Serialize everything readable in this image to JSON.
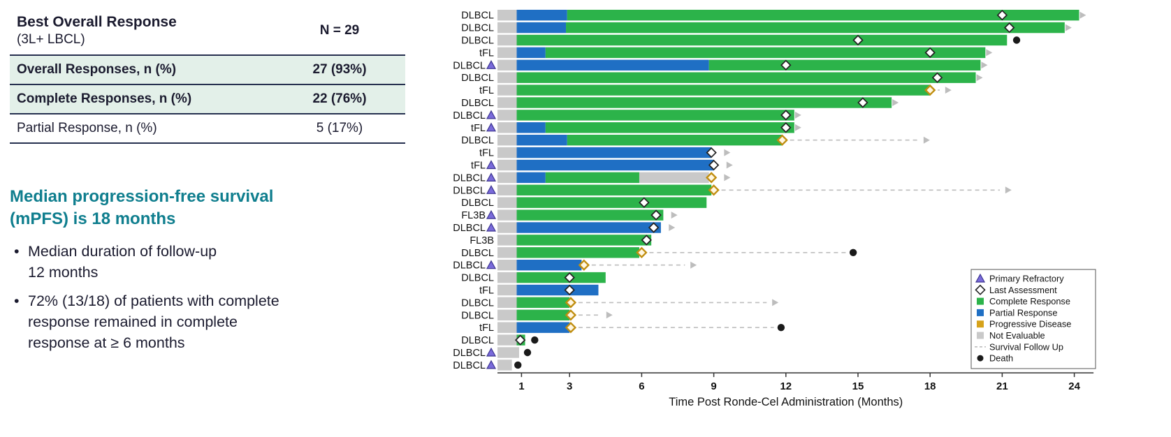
{
  "table": {
    "title": "Best Overall Response",
    "subtitle": "(3L+ LBCL)",
    "n_label": "N = 29",
    "rows": [
      {
        "label": "Overall Responses, n (%)",
        "value": "27 (93%)"
      },
      {
        "label": "Complete Responses, n (%)",
        "value": "22 (76%)"
      },
      {
        "label": "Partial Response, n (%)",
        "value": "5 (17%)"
      }
    ]
  },
  "summary": {
    "heading": "Median progression-free survival\n(mPFS) is 18 months",
    "bullets": [
      "Median duration of follow-up\n12 months",
      "72% (13/18) of patients with complete\nresponse remained in complete\nresponse at ≥ 6 months"
    ]
  },
  "chart_data": {
    "type": "swimmer",
    "xlabel": "Time Post Ronde-Cel Administration (Months)",
    "x_ticks": [
      1,
      3,
      6,
      9,
      12,
      15,
      18,
      21,
      24
    ],
    "xlim": [
      0,
      24.8
    ],
    "colors": {
      "complete_response": "#2CB34A",
      "partial_response": "#1F6FC4",
      "progressive_disease": "#D6A21A",
      "progressive_disease_edge": "#C08E10",
      "not_evaluable": "#C9C9C9",
      "primary_refractory": "#7A6BDB",
      "primary_refractory_edge": "#3D3590",
      "last_assessment_edge": "#222222",
      "death": "#1A1A1A",
      "followup": "#BDBDBD",
      "arrow": "#BDBDBD",
      "axis": "#333333"
    },
    "legend": [
      {
        "type": "triangle",
        "label": "Primary Refractory"
      },
      {
        "type": "open-diamond",
        "label": "Last Assessment"
      },
      {
        "type": "square-cr",
        "label": "Complete Response"
      },
      {
        "type": "square-pr",
        "label": "Partial Response"
      },
      {
        "type": "square-pd",
        "label": "Progressive Disease"
      },
      {
        "type": "square-ne",
        "label": "Not Evaluable"
      },
      {
        "type": "dash",
        "label": "Survival Follow Up"
      },
      {
        "type": "dot",
        "label": "Death"
      }
    ],
    "patients": [
      {
        "label": "DLBCL",
        "segments": [
          [
            "NE",
            0,
            0.8
          ],
          [
            "PR",
            0.8,
            2.9
          ],
          [
            "CR",
            2.9,
            24.2
          ]
        ],
        "markers": [
          [
            "LA",
            21.0
          ]
        ],
        "arrow": 24.2
      },
      {
        "label": "DLBCL",
        "segments": [
          [
            "NE",
            0,
            0.8
          ],
          [
            "PR",
            0.8,
            2.85
          ],
          [
            "CR",
            2.85,
            23.6
          ]
        ],
        "markers": [
          [
            "LA",
            21.3
          ]
        ],
        "arrow": 23.6
      },
      {
        "label": "DLBCL",
        "segments": [
          [
            "NE",
            0,
            0.8
          ],
          [
            "CR",
            0.8,
            21.2
          ]
        ],
        "markers": [
          [
            "LA",
            15.0
          ]
        ],
        "death": 21.6
      },
      {
        "label": "tFL",
        "segments": [
          [
            "NE",
            0,
            0.8
          ],
          [
            "PR",
            0.8,
            2.0
          ],
          [
            "CR",
            2.0,
            20.3
          ]
        ],
        "markers": [
          [
            "LA",
            18.0
          ]
        ],
        "arrow": 20.3
      },
      {
        "label": "DLBCL",
        "primary_refractory": true,
        "segments": [
          [
            "NE",
            0,
            0.8
          ],
          [
            "PR",
            0.8,
            8.8
          ],
          [
            "CR",
            8.8,
            20.1
          ]
        ],
        "markers": [
          [
            "LA",
            12.0
          ]
        ],
        "arrow": 20.1
      },
      {
        "label": "DLBCL",
        "segments": [
          [
            "NE",
            0,
            0.8
          ],
          [
            "CR",
            0.8,
            19.9
          ]
        ],
        "markers": [
          [
            "LA",
            18.3
          ]
        ],
        "arrow": 19.9
      },
      {
        "label": "tFL",
        "segments": [
          [
            "NE",
            0,
            0.8
          ],
          [
            "CR",
            0.8,
            18.0
          ]
        ],
        "markers": [
          [
            "PD",
            18.0
          ]
        ],
        "followup": [
          18.0,
          18.4
        ],
        "arrow": 18.6
      },
      {
        "label": "DLBCL",
        "segments": [
          [
            "NE",
            0,
            0.8
          ],
          [
            "CR",
            0.8,
            16.4
          ]
        ],
        "markers": [
          [
            "LA",
            15.2
          ]
        ],
        "arrow": 16.4
      },
      {
        "label": "DLBCL",
        "primary_refractory": true,
        "segments": [
          [
            "NE",
            0,
            0.8
          ],
          [
            "CR",
            0.8,
            12.35
          ]
        ],
        "markers": [
          [
            "LA",
            12.0
          ]
        ],
        "arrow": 12.35
      },
      {
        "label": "tFL",
        "primary_refractory": true,
        "segments": [
          [
            "NE",
            0,
            0.8
          ],
          [
            "PR",
            0.8,
            2.0
          ],
          [
            "CR",
            2.0,
            12.35
          ]
        ],
        "markers": [
          [
            "LA",
            12.0
          ]
        ],
        "arrow": 12.35
      },
      {
        "label": "DLBCL",
        "segments": [
          [
            "NE",
            0,
            0.8
          ],
          [
            "PR",
            0.8,
            2.9
          ],
          [
            "CR",
            2.9,
            11.85
          ]
        ],
        "markers": [
          [
            "PD",
            11.85
          ]
        ],
        "followup": [
          11.85,
          17.5
        ],
        "arrow": 17.7
      },
      {
        "label": "tFL",
        "segments": [
          [
            "NE",
            0,
            0.8
          ],
          [
            "PR",
            0.8,
            8.9
          ]
        ],
        "markers": [
          [
            "LA",
            8.9
          ]
        ],
        "arrow": 9.4
      },
      {
        "label": "tFL",
        "primary_refractory": true,
        "segments": [
          [
            "NE",
            0,
            0.8
          ],
          [
            "PR",
            0.8,
            9.0
          ]
        ],
        "markers": [
          [
            "LA",
            9.0
          ]
        ],
        "arrow": 9.5
      },
      {
        "label": "DLBCL",
        "primary_refractory": true,
        "segments": [
          [
            "NE",
            0,
            0.8
          ],
          [
            "PR",
            0.8,
            2.0
          ],
          [
            "CR",
            2.0,
            5.9
          ],
          [
            "NE",
            5.9,
            8.8
          ]
        ],
        "markers": [
          [
            "PD",
            8.9
          ]
        ],
        "arrow": 9.4
      },
      {
        "label": "DLBCL",
        "primary_refractory": true,
        "segments": [
          [
            "NE",
            0,
            0.8
          ],
          [
            "CR",
            0.8,
            8.9
          ]
        ],
        "markers": [
          [
            "PD",
            9.0
          ]
        ],
        "followup": [
          9.0,
          20.9
        ],
        "arrow": 21.1
      },
      {
        "label": "DLBCL",
        "segments": [
          [
            "NE",
            0,
            0.8
          ],
          [
            "CR",
            0.8,
            8.7
          ]
        ],
        "markers": [
          [
            "LA",
            6.1
          ]
        ]
      },
      {
        "label": "FL3B",
        "primary_refractory": true,
        "segments": [
          [
            "NE",
            0,
            0.8
          ],
          [
            "CR",
            0.8,
            6.9
          ]
        ],
        "markers": [
          [
            "LA",
            6.6
          ]
        ],
        "arrow": 7.2
      },
      {
        "label": "DLBCL",
        "primary_refractory": true,
        "segments": [
          [
            "NE",
            0,
            0.8
          ],
          [
            "PR",
            0.8,
            6.8
          ]
        ],
        "markers": [
          [
            "LA",
            6.5
          ]
        ],
        "arrow": 7.1
      },
      {
        "label": "FL3B",
        "segments": [
          [
            "NE",
            0,
            0.8
          ],
          [
            "CR",
            0.8,
            6.4
          ]
        ],
        "markers": [
          [
            "LA",
            6.2
          ]
        ]
      },
      {
        "label": "DLBCL",
        "segments": [
          [
            "NE",
            0,
            0.8
          ],
          [
            "CR",
            0.8,
            5.9
          ]
        ],
        "markers": [
          [
            "PD",
            6.0
          ]
        ],
        "followup": [
          6.0,
          14.5
        ],
        "death": 14.8
      },
      {
        "label": "DLBCL",
        "primary_refractory": true,
        "segments": [
          [
            "NE",
            0,
            0.8
          ],
          [
            "PR",
            0.8,
            3.5
          ]
        ],
        "markers": [
          [
            "PD",
            3.6
          ]
        ],
        "followup": [
          3.6,
          7.8
        ],
        "arrow": 8.0
      },
      {
        "label": "DLBCL",
        "segments": [
          [
            "NE",
            0,
            0.8
          ],
          [
            "CR",
            0.8,
            4.5
          ]
        ],
        "markers": [
          [
            "LA",
            3.0
          ]
        ]
      },
      {
        "label": "tFL",
        "segments": [
          [
            "NE",
            0,
            0.8
          ],
          [
            "PR",
            0.8,
            4.2
          ]
        ],
        "markers": [
          [
            "LA",
            3.0
          ]
        ]
      },
      {
        "label": "DLBCL",
        "segments": [
          [
            "NE",
            0,
            0.8
          ],
          [
            "CR",
            0.8,
            3.0
          ]
        ],
        "markers": [
          [
            "PD",
            3.05
          ]
        ],
        "followup": [
          3.05,
          11.2
        ],
        "arrow": 11.4
      },
      {
        "label": "DLBCL",
        "segments": [
          [
            "NE",
            0,
            0.8
          ],
          [
            "CR",
            0.8,
            3.0
          ]
        ],
        "markers": [
          [
            "PD",
            3.05
          ]
        ],
        "followup": [
          3.05,
          4.3
        ],
        "arrow": 4.5
      },
      {
        "label": "tFL",
        "segments": [
          [
            "NE",
            0,
            0.8
          ],
          [
            "PR",
            0.8,
            3.0
          ]
        ],
        "markers": [
          [
            "PD",
            3.05
          ]
        ],
        "followup": [
          3.05,
          11.5
        ],
        "death": 11.8
      },
      {
        "label": "DLBCL",
        "segments": [
          [
            "NE",
            0,
            0.8
          ],
          [
            "CR",
            0.8,
            1.15
          ]
        ],
        "markers": [
          [
            "LA",
            0.95
          ]
        ],
        "death": 1.55
      },
      {
        "label": "DLBCL",
        "primary_refractory": true,
        "segments": [
          [
            "NE",
            0,
            0.9
          ]
        ],
        "death": 1.25
      },
      {
        "label": "DLBCL",
        "primary_refractory": true,
        "segments": [
          [
            "NE",
            0,
            0.6
          ]
        ],
        "death": 0.85
      }
    ]
  }
}
